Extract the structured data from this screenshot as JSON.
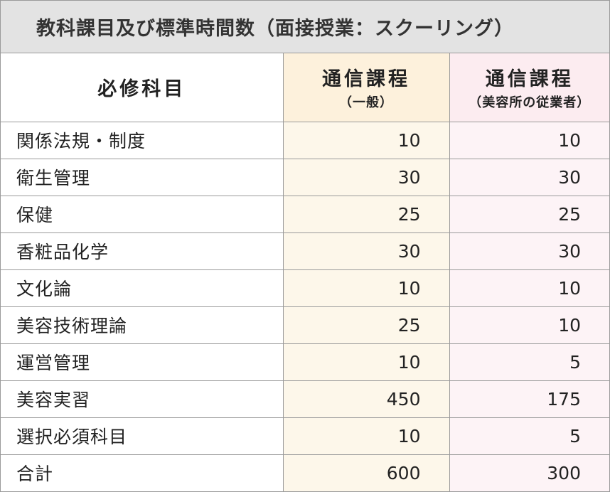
{
  "title": "教科課目及び標準時間数（面接授業：スクーリング）",
  "header": {
    "subject_col": "必修科目",
    "general": {
      "main": "通信課程",
      "sub": "（一般）"
    },
    "employee": {
      "main": "通信課程",
      "sub": "（美容所の従業者）"
    }
  },
  "rows": [
    {
      "subject": "関係法規・制度",
      "general": "10",
      "employee": "10"
    },
    {
      "subject": "衛生管理",
      "general": "30",
      "employee": "30"
    },
    {
      "subject": "保健",
      "general": "25",
      "employee": "25"
    },
    {
      "subject": "香粧品化学",
      "general": "30",
      "employee": "30"
    },
    {
      "subject": "文化論",
      "general": "10",
      "employee": "10"
    },
    {
      "subject": "美容技術理論",
      "general": "25",
      "employee": "10"
    },
    {
      "subject": "運営管理",
      "general": "10",
      "employee": "5"
    },
    {
      "subject": "美容実習",
      "general": "450",
      "employee": "175"
    },
    {
      "subject": "選択必須科目",
      "general": "10",
      "employee": "5"
    },
    {
      "subject": "合計",
      "general": "600",
      "employee": "300"
    }
  ],
  "colors": {
    "title_bg": "#e3e3e3",
    "general_header_bg": "#fdf1dc",
    "employee_header_bg": "#fcecf0",
    "general_cell_bg": "#fdf7ea",
    "employee_cell_bg": "#fdf3f6",
    "border": "#9a9a9a"
  }
}
